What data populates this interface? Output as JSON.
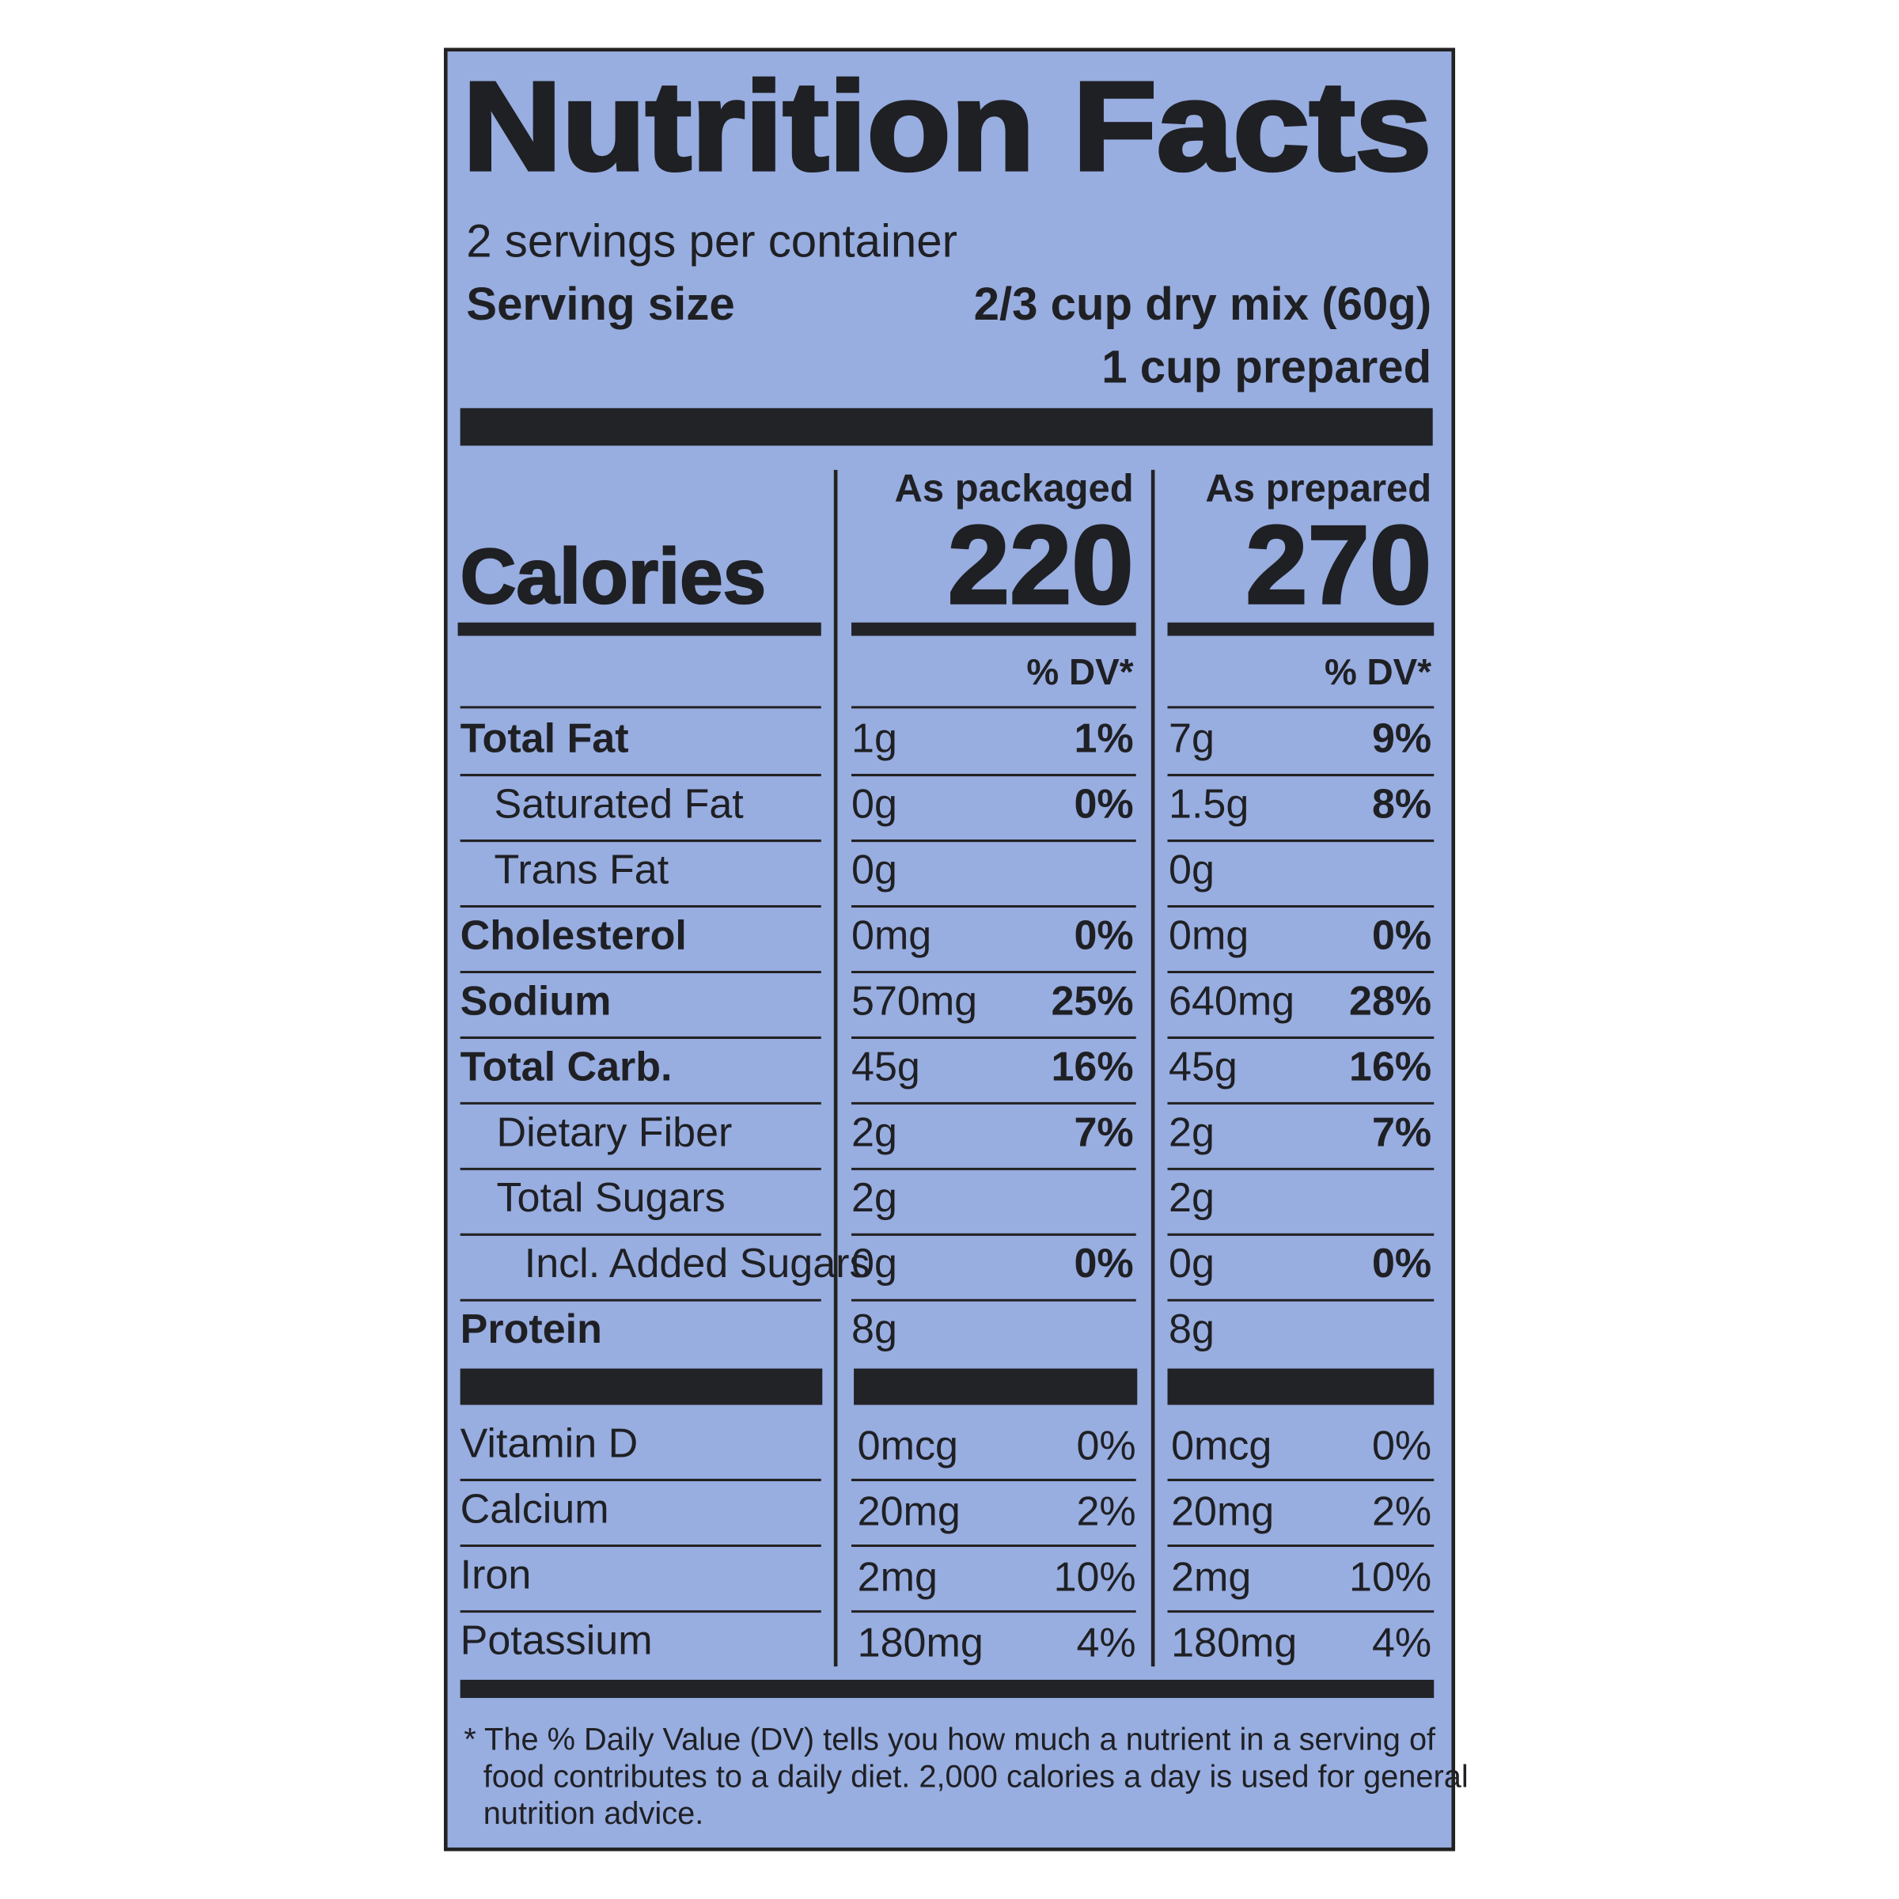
{
  "title": "Nutrition Facts",
  "servings_per_container": "2 servings per container",
  "serving_size": {
    "label": "Serving size",
    "dry": "2/3 cup dry mix (60g)",
    "prepared": "1 cup prepared"
  },
  "columns": [
    "As packaged",
    "As prepared"
  ],
  "calories": {
    "label": "Calories",
    "values": [
      "220",
      "270"
    ]
  },
  "dv_header": [
    "% DV*",
    "% DV*"
  ],
  "nutrients": [
    {
      "name": "Total Fat",
      "packaged": {
        "amount": "1g",
        "dv": "1%"
      },
      "prepared": {
        "amount": "7g",
        "dv": "9%"
      }
    },
    {
      "name": "Saturated Fat",
      "packaged": {
        "amount": "0g",
        "dv": "0%"
      },
      "prepared": {
        "amount": "1.5g",
        "dv": "8%"
      }
    },
    {
      "name": "Trans Fat",
      "packaged": {
        "amount": "0g"
      },
      "prepared": {
        "amount": "0g"
      }
    },
    {
      "name": "Cholesterol",
      "packaged": {
        "amount": "0mg",
        "dv": "0%"
      },
      "prepared": {
        "amount": "0mg",
        "dv": "0%"
      }
    },
    {
      "name": "Sodium",
      "packaged": {
        "amount": "570mg",
        "dv": "25%"
      },
      "prepared": {
        "amount": "640mg",
        "dv": "28%"
      }
    },
    {
      "name": "Total Carb.",
      "packaged": {
        "amount": "45g",
        "dv": "16%"
      },
      "prepared": {
        "amount": "45g",
        "dv": "16%"
      }
    },
    {
      "name": "Dietary Fiber",
      "packaged": {
        "amount": "2g",
        "dv": "7%"
      },
      "prepared": {
        "amount": "2g",
        "dv": "7%"
      }
    },
    {
      "name": "Total Sugars",
      "packaged": {
        "amount": "2g"
      },
      "prepared": {
        "amount": "2g"
      }
    },
    {
      "name": "Incl. Added Sugars",
      "packaged": {
        "amount": "0g",
        "dv": "0%"
      },
      "prepared": {
        "amount": "0g",
        "dv": "0%"
      }
    },
    {
      "name": "Protein",
      "packaged": {
        "amount": "8g"
      },
      "prepared": {
        "amount": "8g"
      }
    }
  ],
  "vitamins": [
    {
      "name": "Vitamin D",
      "packaged": {
        "amount": "0mcg",
        "dv": "0%"
      },
      "prepared": {
        "amount": "0mcg",
        "dv": "0%"
      }
    },
    {
      "name": "Calcium",
      "packaged": {
        "amount": "20mg",
        "dv": "2%"
      },
      "prepared": {
        "amount": "20mg",
        "dv": "2%"
      }
    },
    {
      "name": "Iron",
      "packaged": {
        "amount": "2mg",
        "dv": "10%"
      },
      "prepared": {
        "amount": "2mg",
        "dv": "10%"
      }
    },
    {
      "name": "Potassium",
      "packaged": {
        "amount": "180mg",
        "dv": "4%"
      },
      "prepared": {
        "amount": "180mg",
        "dv": "4%"
      }
    }
  ],
  "footnote": [
    "* The % Daily Value (DV) tells you how much a nutrient in a serving of",
    "food contributes to a daily diet. 2,000 calories a day is used for general",
    "nutrition advice."
  ]
}
